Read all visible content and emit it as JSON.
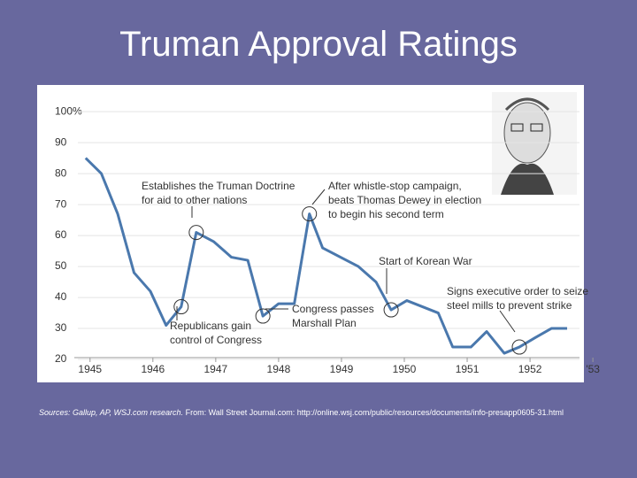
{
  "chart_data": {
    "type": "line",
    "title": "Truman Approval Ratings",
    "x": [
      1944.93,
      1945.18,
      1945.44,
      1945.7,
      1945.96,
      1946.21,
      1946.45,
      1946.69,
      1946.97,
      1947.25,
      1947.51,
      1947.75,
      1948.0,
      1948.25,
      1948.49,
      1948.7,
      1949.27,
      1949.55,
      1949.79,
      1950.04,
      1950.54,
      1950.77,
      1951.06,
      1951.31,
      1951.59,
      1951.83,
      1952.08,
      1952.34,
      1952.59
    ],
    "series": [
      {
        "name": "Approval",
        "color": "#4a78ad",
        "values": [
          85,
          80,
          67,
          48,
          42,
          31,
          37,
          61,
          58,
          53,
          52,
          34,
          38,
          38,
          67,
          56,
          50,
          45,
          36,
          39,
          35,
          24,
          24,
          29,
          22,
          24,
          27,
          30,
          30
        ]
      }
    ],
    "xlim": [
      1944.37,
      1953.73
    ],
    "ylim": [
      14.3,
      108.6
    ],
    "xticks": [
      1945,
      1946,
      1947,
      1948,
      1949,
      1950,
      1951,
      1952,
      {
        "value": 1953,
        "label": "'53"
      }
    ],
    "yticks": [
      20,
      30,
      40,
      50,
      60,
      70,
      80,
      90,
      {
        "value": 100,
        "label": "100%"
      }
    ],
    "grid": true,
    "annotations": [
      {
        "lines": [
          "Republicans gain",
          "control of Congress"
        ]
      },
      {
        "lines": [
          "Establishes the Truman Doctrine",
          "for aid to other nations"
        ]
      },
      {
        "lines": [
          "Congress passes",
          "Marshall Plan"
        ]
      },
      {
        "lines": [
          "After whistle-stop campaign,",
          "beats Thomas Dewey in election",
          "to begin his second term"
        ]
      },
      {
        "lines": [
          "Start of Korean War"
        ]
      },
      {
        "lines": [
          "Signs executive order to seize",
          "steel mills to prevent strike"
        ]
      }
    ]
  },
  "source_label": "Sources: Gallup, AP, WSJ.com research.",
  "source_text": "From: Wall Street Journal.com: http://online.wsj.com/public/resources/documents/info-presapp0605-31.html"
}
